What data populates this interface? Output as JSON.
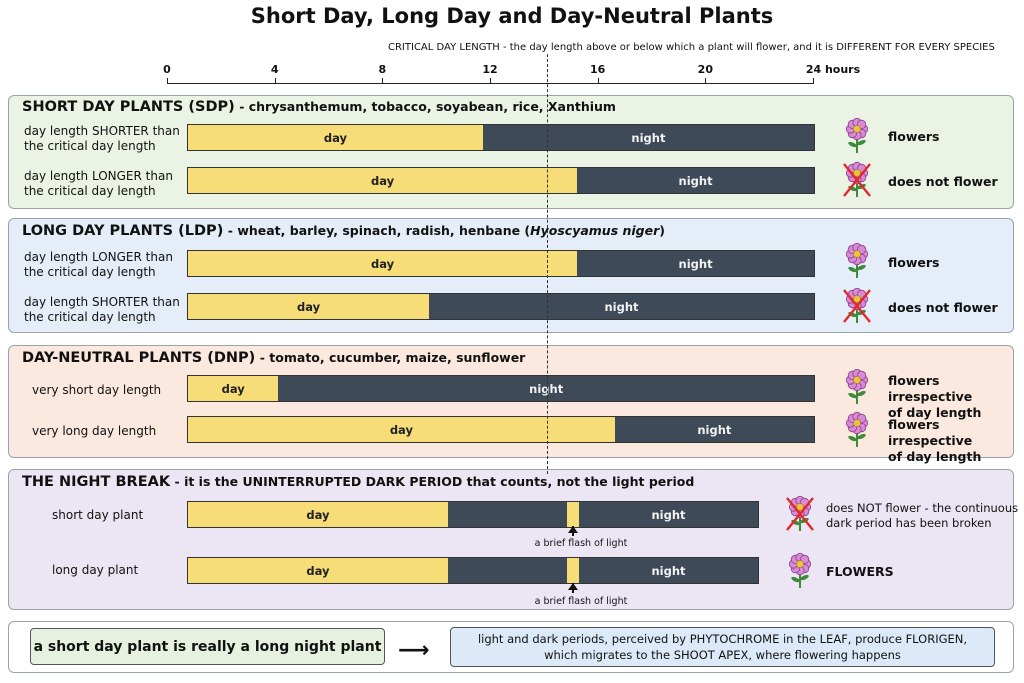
{
  "title": "Short Day, Long Day and Day-Neutral Plants",
  "critical_note": "CRITICAL DAY LENGTH - the day length above or below which a plant will flower, and it is DIFFERENT FOR EVERY SPECIES",
  "axis": {
    "ticks": [
      {
        "value": 0,
        "label": "0"
      },
      {
        "value": 4,
        "label": "4"
      },
      {
        "value": 8,
        "label": "8"
      },
      {
        "value": 12,
        "label": "12"
      },
      {
        "value": 16,
        "label": "16"
      },
      {
        "value": 20,
        "label": "20"
      },
      {
        "value": 24,
        "label": "24 hours"
      }
    ],
    "critical_hours": 14.1
  },
  "labels": {
    "day": "day",
    "night": "night"
  },
  "sdp": {
    "title": "SHORT DAY PLANTS (SDP)",
    "examples": "- chrysanthemum, tobacco, soyabean, rice, Xanthium",
    "row1": {
      "label_l1": "day length SHORTER than",
      "label_l2": "the critical day length",
      "day_hours": 11.7,
      "outcome": "flowers"
    },
    "row2": {
      "label_l1": "day length LONGER than",
      "label_l2": "the critical day length",
      "day_hours": 15.2,
      "outcome": "does not flower"
    }
  },
  "ldp": {
    "title": "LONG DAY PLANTS (LDP)",
    "examples_pre": "- wheat, barley, spinach, radish, henbane (",
    "examples_italic": "Hyoscyamus niger",
    "examples_post": ")",
    "row1": {
      "label_l1": "day length LONGER than",
      "label_l2": "the critical day length",
      "day_hours": 15.2,
      "outcome": "flowers"
    },
    "row2": {
      "label_l1": "day length SHORTER than",
      "label_l2": "the critical day length",
      "day_hours": 9.7,
      "outcome": "does not flower"
    }
  },
  "dnp": {
    "title": "DAY-NEUTRAL PLANTS (DNP)",
    "examples": "- tomato, cucumber, maize, sunflower",
    "row1": {
      "label": "very short day length",
      "day_hours": 4.1,
      "outcome_l1": "flowers irrespective",
      "outcome_l2": "of day length"
    },
    "row2": {
      "label": "very long day length",
      "day_hours": 16.6,
      "outcome_l1": "flowers irrespective",
      "outcome_l2": "of day length"
    }
  },
  "night_break": {
    "title": "THE NIGHT BREAK",
    "subtitle": "- it is the UNINTERRUPTED DARK PERIOD that counts, not the light period",
    "flash_label": "a brief flash of light",
    "row1": {
      "label": "short day plant",
      "outcome_l1": "does NOT flower - the continuous",
      "outcome_l2": "dark period has been broken"
    },
    "row2": {
      "label": "long day plant",
      "outcome": "FLOWERS"
    }
  },
  "footer": {
    "box1": "a short day plant is really a long night plant",
    "arrow": "⟶",
    "box2_l1": "light and dark periods, perceived by PHYTOCHROME in the LEAF, produce FLORIGEN,",
    "box2_l2": "which migrates to the SHOOT APEX, where flowering happens"
  },
  "colors": {
    "day": "#f6dd78",
    "night": "#3e4a57",
    "petal": "#d98ad6",
    "petal_center": "#e8c240",
    "stem": "#3d8a3a",
    "cross": "#e02a2a"
  },
  "icons": {
    "flower": "flower-icon",
    "crossed_flower": "crossed-flower-icon"
  }
}
